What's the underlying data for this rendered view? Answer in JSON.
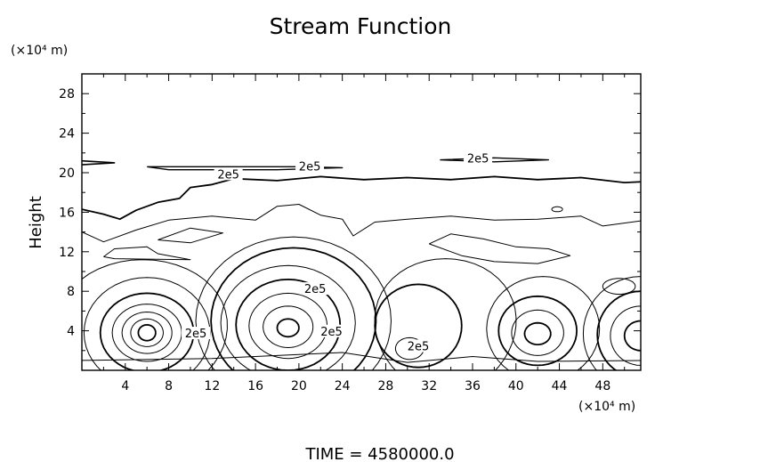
{
  "chart_data": {
    "type": "contour",
    "title": "Stream Function",
    "ylabel": "Height",
    "y_unit": "(×10⁴ m)",
    "x_unit": "(×10⁴ m)",
    "footer": "TIME  =  4580000.0",
    "xlim": [
      0,
      51.5
    ],
    "ylim": [
      0,
      30
    ],
    "x_ticks": [
      4,
      8,
      12,
      16,
      20,
      24,
      28,
      32,
      36,
      40,
      44,
      48
    ],
    "y_ticks": [
      4,
      8,
      12,
      16,
      20,
      24,
      28
    ],
    "contour_labels": [
      {
        "text": "2e5",
        "x": 13.5,
        "y": 19.7
      },
      {
        "text": "2e5",
        "x": 21.0,
        "y": 20.5
      },
      {
        "text": "2e5",
        "x": 36.5,
        "y": 21.3
      },
      {
        "text": "2e5",
        "x": 21.5,
        "y": 8.1
      },
      {
        "text": "2e5",
        "x": 10.5,
        "y": 3.6
      },
      {
        "text": "2e5",
        "x": 23.0,
        "y": 3.8
      },
      {
        "text": "2e5",
        "x": 31.0,
        "y": 2.3
      }
    ],
    "vortex_centers": [
      {
        "x": 6,
        "y": 3.8
      },
      {
        "x": 19,
        "y": 4.3
      },
      {
        "x": 30.5,
        "y": 2.2
      },
      {
        "x": 42,
        "y": 3.7
      },
      {
        "x": 50.5,
        "y": 3.5
      }
    ],
    "grid": false
  }
}
